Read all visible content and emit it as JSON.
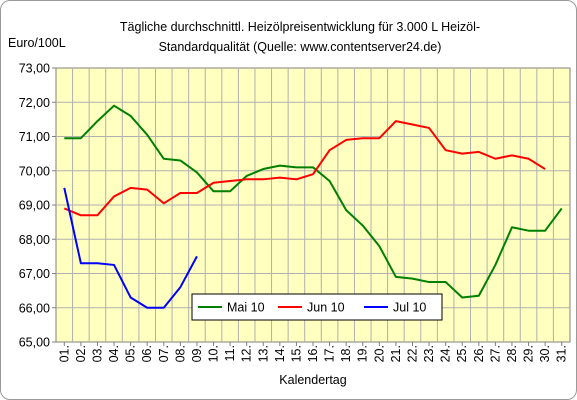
{
  "chart_data": {
    "type": "line",
    "title_line1": "Tägliche durchschnittl. Heizölpreisentwicklung für 3.000 L Heizöl-",
    "title_line2": "Standardqualität (Quelle: www.contentserver24.de)",
    "ylabel": "Euro/100L",
    "xlabel": "Kalendertag",
    "ylim": [
      65,
      73
    ],
    "yticks": [
      "65,00",
      "66,00",
      "67,00",
      "68,00",
      "69,00",
      "70,00",
      "71,00",
      "72,00",
      "73,00"
    ],
    "categories": [
      "01.",
      "02.",
      "03.",
      "04.",
      "05.",
      "06.",
      "07.",
      "08.",
      "09.",
      "10.",
      "11.",
      "12.",
      "13.",
      "14.",
      "15.",
      "16.",
      "17.",
      "18.",
      "19.",
      "20.",
      "21.",
      "22.",
      "23.",
      "24.",
      "25.",
      "26.",
      "27.",
      "28.",
      "29.",
      "30.",
      "31."
    ],
    "grid": true,
    "legend_position": "bottom-right",
    "plot_background": "#ffffc0",
    "series": [
      {
        "name": "Mai 10",
        "color": "#008000",
        "values": [
          70.95,
          70.95,
          71.45,
          71.9,
          71.6,
          71.05,
          70.35,
          70.3,
          69.95,
          69.4,
          69.4,
          69.85,
          70.05,
          70.15,
          70.1,
          70.1,
          69.7,
          68.85,
          68.4,
          67.8,
          66.9,
          66.85,
          66.75,
          66.75,
          66.3,
          66.35,
          67.25,
          68.35,
          68.25,
          68.25,
          68.9
        ]
      },
      {
        "name": "Jun 10",
        "color": "#ff0000",
        "values": [
          68.9,
          68.7,
          68.7,
          69.25,
          69.5,
          69.45,
          69.05,
          69.35,
          69.35,
          69.65,
          69.7,
          69.75,
          69.75,
          69.8,
          69.75,
          69.9,
          70.6,
          70.9,
          70.95,
          70.95,
          71.45,
          71.35,
          71.25,
          70.6,
          70.5,
          70.55,
          70.35,
          70.45,
          70.35,
          70.05,
          null
        ]
      },
      {
        "name": "Jul 10",
        "color": "#0000ff",
        "values": [
          69.5,
          67.3,
          67.3,
          67.25,
          66.3,
          66.0,
          66.0,
          66.6,
          67.5,
          null,
          null,
          null,
          null,
          null,
          null,
          null,
          null,
          null,
          null,
          null,
          null,
          null,
          null,
          null,
          null,
          null,
          null,
          null,
          null,
          null,
          null
        ]
      }
    ]
  }
}
